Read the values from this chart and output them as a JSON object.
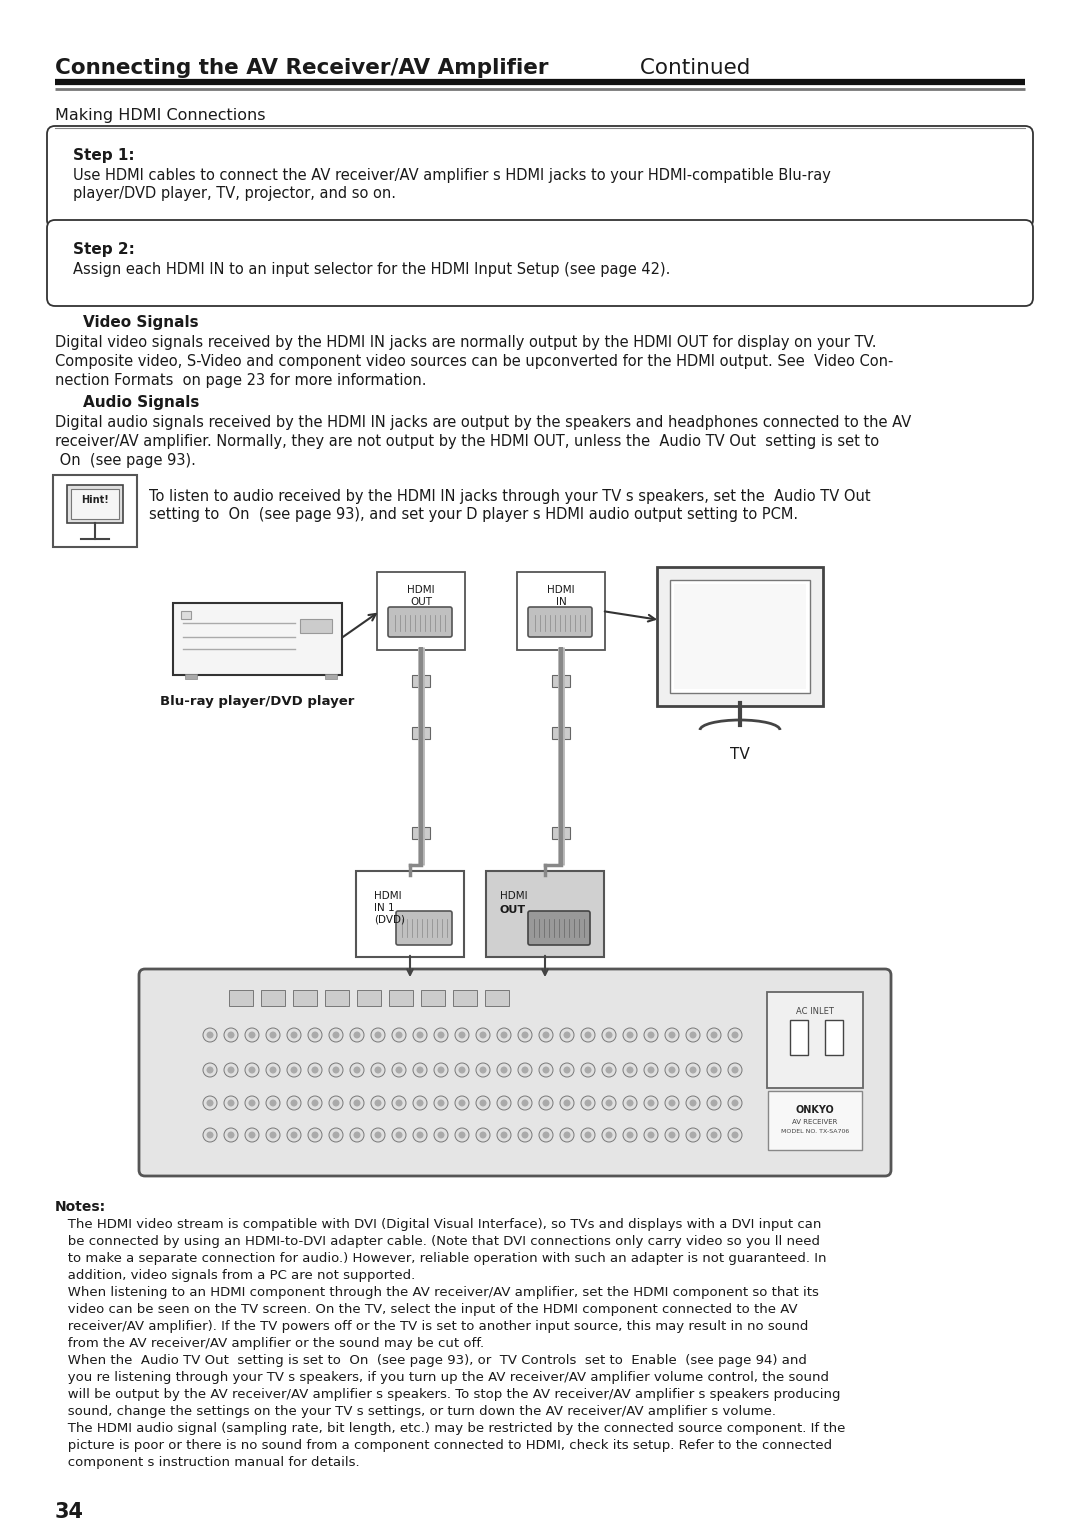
{
  "title_bold": "Connecting the AV Receiver/AV Amplifier",
  "title_normal": " Continued",
  "section_heading": "Making HDMI Connections",
  "step1_label": "Step 1:",
  "step1_text_line1": "Use HDMI cables to connect the AV receiver/AV amplifier s HDMI jacks to your HDMI-compatible Blu-ray",
  "step1_text_line2": "player/DVD player, TV, projector, and so on.",
  "step2_label": "Step 2:",
  "step2_text": "Assign each HDMI IN to an input selector for the HDMI Input Setup (see page 42).",
  "video_heading": "Video Signals",
  "video_text_lines": [
    "Digital video signals received by the HDMI IN jacks are normally output by the HDMI OUT for display on your TV.",
    "Composite video, S-Video and component video sources can be upconverted for the HDMI output. See  Video Con-",
    "nection Formats  on page 23 for more information."
  ],
  "audio_heading": "Audio Signals",
  "audio_text_lines": [
    "Digital audio signals received by the HDMI IN jacks are output by the speakers and headphones connected to the AV",
    "receiver/AV amplifier. Normally, they are not output by the HDMI OUT, unless the  Audio TV Out  setting is set to",
    " On  (see page 93)."
  ],
  "hint_line1": "To listen to audio received by the HDMI IN jacks through your TV s speakers, set the  Audio TV Out",
  "hint_line2": "setting to  On  (see page 93), and set your D player s HDMI audio output setting to PCM.",
  "hint_label": "Hint!",
  "notes_label": "Notes:",
  "notes_lines": [
    "   The HDMI video stream is compatible with DVI (Digital Visual Interface), so TVs and displays with a DVI input can",
    "   be connected by using an HDMI-to-DVI adapter cable. (Note that DVI connections only carry video so you ll need",
    "   to make a separate connection for audio.) However, reliable operation with such an adapter is not guaranteed. In",
    "   addition, video signals from a PC are not supported.",
    "   When listening to an HDMI component through the AV receiver/AV amplifier, set the HDMI component so that its",
    "   video can be seen on the TV screen. On the TV, select the input of the HDMI component connected to the AV",
    "   receiver/AV amplifier). If the TV powers off or the TV is set to another input source, this may result in no sound",
    "   from the AV receiver/AV amplifier or the sound may be cut off.",
    "   When the  Audio TV Out  setting is set to  On  (see page 93), or  TV Controls  set to  Enable  (see page 94) and",
    "   you re listening through your TV s speakers, if you turn up the AV receiver/AV amplifier volume control, the sound",
    "   will be output by the AV receiver/AV amplifier s speakers. To stop the AV receiver/AV amplifier s speakers producing",
    "   sound, change the settings on the your TV s settings, or turn down the AV receiver/AV amplifier s volume.",
    "   The HDMI audio signal (sampling rate, bit length, etc.) may be restricted by the connected source component. If the",
    "   picture is poor or there is no sound from a component connected to HDMI, check its setup. Refer to the connected",
    "   component s instruction manual for details."
  ],
  "page_number": "34",
  "bg_color": "#ffffff",
  "text_color": "#1a1a1a",
  "line_color_dark": "#111111",
  "line_color_mid": "#888888",
  "box_edge": "#444444"
}
